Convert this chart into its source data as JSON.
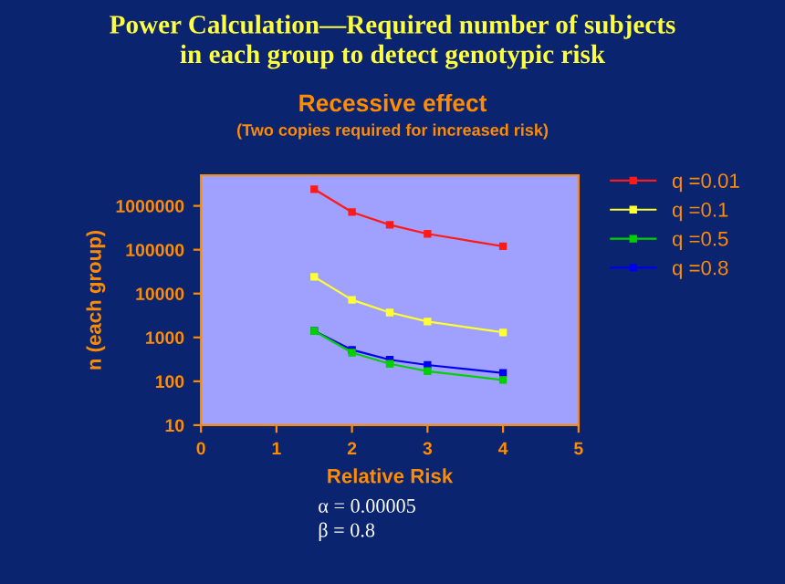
{
  "chart_data": {
    "type": "line",
    "title": "Power Calculation—Required number of subjects\nin each group to detect genotypic risk",
    "subtitle": "Recessive effect",
    "annotations": [
      "(Two copies required for increased risk)",
      "α = 0.00005\nβ = 0.8"
    ],
    "xlabel": "Relative Risk",
    "ylabel": "n (each group)",
    "x": [
      1.5,
      2,
      2.5,
      3,
      4
    ],
    "series": [
      {
        "name": "q =0.01",
        "color": "#ff1a1a",
        "values": [
          2400000,
          720000,
          370000,
          230000,
          120000
        ]
      },
      {
        "name": "q =0.1",
        "color": "#ffff33",
        "values": [
          24000,
          7200,
          3700,
          2300,
          1300
        ]
      },
      {
        "name": "q =0.5",
        "color": "#00d000",
        "values": [
          1400,
          450,
          250,
          170,
          107
        ]
      },
      {
        "name": "q =0.8",
        "color": "#0000ee",
        "values": [
          1400,
          520,
          310,
          235,
          155
        ]
      }
    ],
    "log": true,
    "xlim": [
      0,
      5
    ],
    "xticks": [
      0,
      1,
      2,
      3,
      4,
      5
    ],
    "ylim": [
      10,
      5000000
    ],
    "yticks": [
      10,
      100,
      1000,
      10000,
      100000,
      1000000
    ],
    "grid": false,
    "legend": "top right",
    "marker": "square",
    "line_style": "solid"
  }
}
